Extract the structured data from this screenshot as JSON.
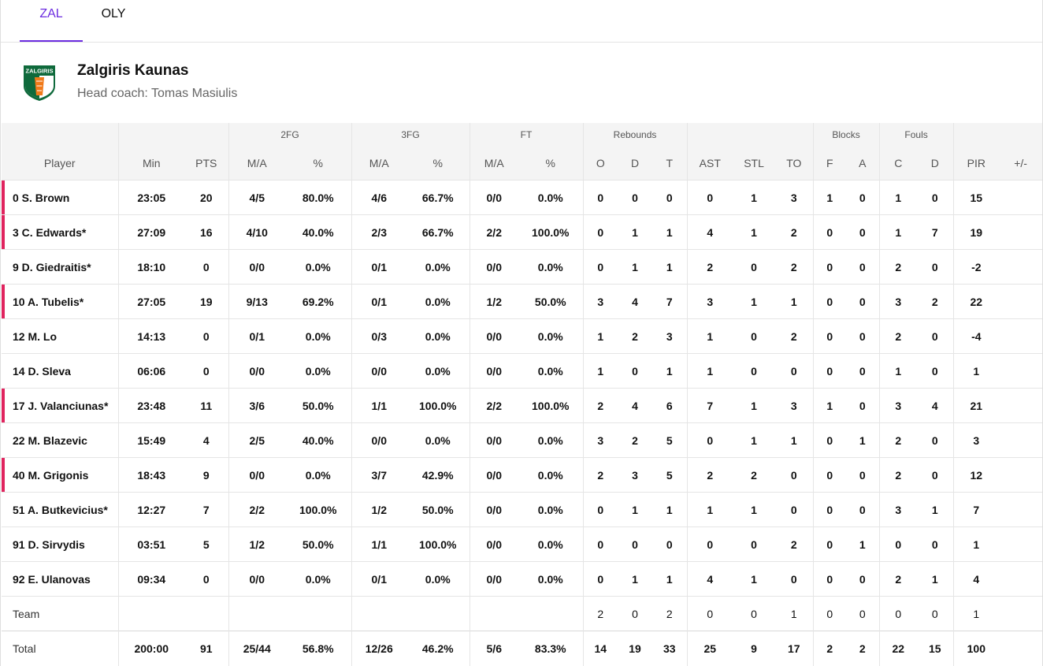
{
  "tabs": [
    {
      "label": "ZAL",
      "active": true
    },
    {
      "label": "OLY",
      "active": false
    }
  ],
  "team": {
    "name": "Zalgiris Kaunas",
    "coach": "Head coach: Tomas Masiulis",
    "logo_text": "ZALGIRIS"
  },
  "colors": {
    "accent": "#6c2ce0",
    "starter_marker": "#e0245e",
    "logo_green": "#0f6a3c",
    "logo_orange": "#f07a1a"
  },
  "groups": {
    "fg2": "2FG",
    "fg3": "3FG",
    "ft": "FT",
    "reb": "Rebounds",
    "blk": "Blocks",
    "fouls": "Fouls"
  },
  "columns": [
    "Player",
    "Min",
    "PTS",
    "M/A",
    "%",
    "M/A",
    "%",
    "M/A",
    "%",
    "O",
    "D",
    "T",
    "AST",
    "STL",
    "TO",
    "F",
    "A",
    "C",
    "D",
    "PIR",
    "+/-"
  ],
  "rows": [
    {
      "starter": true,
      "cells": [
        "0 S. Brown",
        "23:05",
        "20",
        "4/5",
        "80.0%",
        "4/6",
        "66.7%",
        "0/0",
        "0.0%",
        "0",
        "0",
        "0",
        "0",
        "1",
        "3",
        "1",
        "0",
        "1",
        "0",
        "15",
        ""
      ]
    },
    {
      "starter": true,
      "cells": [
        "3 C. Edwards*",
        "27:09",
        "16",
        "4/10",
        "40.0%",
        "2/3",
        "66.7%",
        "2/2",
        "100.0%",
        "0",
        "1",
        "1",
        "4",
        "1",
        "2",
        "0",
        "0",
        "1",
        "7",
        "19",
        ""
      ]
    },
    {
      "starter": false,
      "cells": [
        "9 D. Giedraitis*",
        "18:10",
        "0",
        "0/0",
        "0.0%",
        "0/1",
        "0.0%",
        "0/0",
        "0.0%",
        "0",
        "1",
        "1",
        "2",
        "0",
        "2",
        "0",
        "0",
        "2",
        "0",
        "-2",
        ""
      ]
    },
    {
      "starter": true,
      "cells": [
        "10 A. Tubelis*",
        "27:05",
        "19",
        "9/13",
        "69.2%",
        "0/1",
        "0.0%",
        "1/2",
        "50.0%",
        "3",
        "4",
        "7",
        "3",
        "1",
        "1",
        "0",
        "0",
        "3",
        "2",
        "22",
        ""
      ]
    },
    {
      "starter": false,
      "cells": [
        "12 M. Lo",
        "14:13",
        "0",
        "0/1",
        "0.0%",
        "0/3",
        "0.0%",
        "0/0",
        "0.0%",
        "1",
        "2",
        "3",
        "1",
        "0",
        "2",
        "0",
        "0",
        "2",
        "0",
        "-4",
        ""
      ]
    },
    {
      "starter": false,
      "cells": [
        "14 D. Sleva",
        "06:06",
        "0",
        "0/0",
        "0.0%",
        "0/0",
        "0.0%",
        "0/0",
        "0.0%",
        "1",
        "0",
        "1",
        "1",
        "0",
        "0",
        "0",
        "0",
        "1",
        "0",
        "1",
        ""
      ]
    },
    {
      "starter": true,
      "cells": [
        "17 J. Valanciunas*",
        "23:48",
        "11",
        "3/6",
        "50.0%",
        "1/1",
        "100.0%",
        "2/2",
        "100.0%",
        "2",
        "4",
        "6",
        "7",
        "1",
        "3",
        "1",
        "0",
        "3",
        "4",
        "21",
        ""
      ]
    },
    {
      "starter": false,
      "cells": [
        "22 M. Blazevic",
        "15:49",
        "4",
        "2/5",
        "40.0%",
        "0/0",
        "0.0%",
        "0/0",
        "0.0%",
        "3",
        "2",
        "5",
        "0",
        "1",
        "1",
        "0",
        "1",
        "2",
        "0",
        "3",
        ""
      ]
    },
    {
      "starter": true,
      "cells": [
        "40 M. Grigonis",
        "18:43",
        "9",
        "0/0",
        "0.0%",
        "3/7",
        "42.9%",
        "0/0",
        "0.0%",
        "2",
        "3",
        "5",
        "2",
        "2",
        "0",
        "0",
        "0",
        "2",
        "0",
        "12",
        ""
      ]
    },
    {
      "starter": false,
      "cells": [
        "51 A. Butkevicius*",
        "12:27",
        "7",
        "2/2",
        "100.0%",
        "1/2",
        "50.0%",
        "0/0",
        "0.0%",
        "0",
        "1",
        "1",
        "1",
        "1",
        "0",
        "0",
        "0",
        "3",
        "1",
        "7",
        ""
      ]
    },
    {
      "starter": false,
      "cells": [
        "91 D. Sirvydis",
        "03:51",
        "5",
        "1/2",
        "50.0%",
        "1/1",
        "100.0%",
        "0/0",
        "0.0%",
        "0",
        "0",
        "0",
        "0",
        "0",
        "2",
        "0",
        "1",
        "0",
        "0",
        "1",
        ""
      ]
    },
    {
      "starter": false,
      "cells": [
        "92 E. Ulanovas",
        "09:34",
        "0",
        "0/0",
        "0.0%",
        "0/1",
        "0.0%",
        "0/0",
        "0.0%",
        "0",
        "1",
        "1",
        "4",
        "1",
        "0",
        "0",
        "0",
        "2",
        "1",
        "4",
        ""
      ]
    }
  ],
  "team_row": {
    "cells": [
      "Team",
      "",
      "",
      "",
      "",
      "",
      "",
      "",
      "",
      "2",
      "0",
      "2",
      "0",
      "0",
      "1",
      "0",
      "0",
      "0",
      "0",
      "1",
      ""
    ]
  },
  "total_row": {
    "cells": [
      "Total",
      "200:00",
      "91",
      "25/44",
      "56.8%",
      "12/26",
      "46.2%",
      "5/6",
      "83.3%",
      "14",
      "19",
      "33",
      "25",
      "9",
      "17",
      "2",
      "2",
      "22",
      "15",
      "100",
      ""
    ]
  }
}
